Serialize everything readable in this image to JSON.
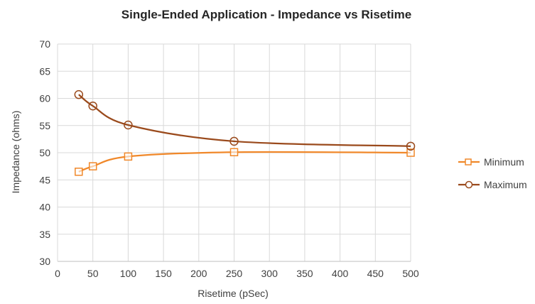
{
  "chart_data": {
    "type": "line",
    "title": "Single-Ended Application - Impedance vs Risetime",
    "xlabel": "Risetime  (pSec)",
    "ylabel": "Impedance (ohms)",
    "xlim": [
      0,
      500
    ],
    "ylim": [
      30,
      70
    ],
    "x_ticks": [
      "0",
      "50",
      "100",
      "150",
      "200",
      "250",
      "300",
      "350",
      "400",
      "450",
      "500"
    ],
    "y_ticks": [
      "70",
      "65",
      "60",
      "55",
      "50",
      "45",
      "40",
      "35",
      "30"
    ],
    "grid": true,
    "legend_position": "right",
    "series": [
      {
        "name": "Minimum",
        "color": "#F0882A",
        "marker": "square",
        "x": [
          30,
          50,
          100,
          250,
          500
        ],
        "values": [
          46.5,
          47.5,
          49.3,
          50.1,
          50.0
        ]
      },
      {
        "name": "Maximum",
        "color": "#9A4A1C",
        "marker": "circle",
        "x": [
          30,
          50,
          100,
          250,
          500
        ],
        "values": [
          60.7,
          58.6,
          55.1,
          52.1,
          51.2
        ]
      }
    ]
  }
}
